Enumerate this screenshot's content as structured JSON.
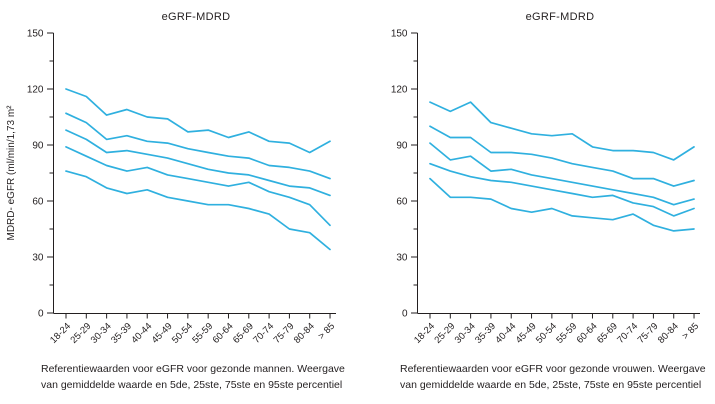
{
  "chart_data": [
    {
      "type": "line",
      "title": "eGRF-MDRD",
      "ylabel": "MDRD- eGFR (ml/min/1,73 m²",
      "xlabel": "",
      "ylim": [
        0,
        150
      ],
      "yticks": [
        0,
        30,
        60,
        90,
        120,
        150
      ],
      "minor_tick_step": 15,
      "grid": false,
      "legend": "none",
      "line_color": "#2fb0df",
      "categories": [
        "18-24",
        "25-29",
        "30-34",
        "35-39",
        "40-44",
        "45-49",
        "50-54",
        "55-59",
        "60-64",
        "65-69",
        "70-74",
        "75-79",
        "80-84",
        "> 85"
      ],
      "series": [
        {
          "name": "95ste percentiel",
          "values": [
            120,
            116,
            106,
            109,
            105,
            104,
            97,
            98,
            94,
            97,
            92,
            91,
            86,
            92
          ]
        },
        {
          "name": "75ste percentiel",
          "values": [
            107,
            102,
            93,
            95,
            92,
            91,
            88,
            86,
            84,
            83,
            79,
            78,
            76,
            72
          ]
        },
        {
          "name": "gemiddelde waarde",
          "values": [
            98,
            93,
            86,
            87,
            85,
            83,
            80,
            77,
            75,
            74,
            71,
            68,
            67,
            63
          ]
        },
        {
          "name": "25ste percentiel",
          "values": [
            89,
            84,
            79,
            76,
            78,
            74,
            72,
            70,
            68,
            70,
            65,
            62,
            58,
            47
          ]
        },
        {
          "name": "5de percentiel",
          "values": [
            76,
            73,
            67,
            64,
            66,
            62,
            60,
            58,
            58,
            56,
            53,
            45,
            43,
            34
          ]
        }
      ],
      "caption_lines": [
        "Referentiewaarden voor eGFR voor gezonde mannen. Weergave",
        "van gemiddelde waarde en 5de, 25ste, 75ste en 95ste percentiel"
      ]
    },
    {
      "type": "line",
      "title": "eGRF-MDRD",
      "ylabel": "",
      "xlabel": "",
      "ylim": [
        0,
        150
      ],
      "yticks": [
        0,
        30,
        60,
        90,
        120,
        150
      ],
      "minor_tick_step": 15,
      "grid": false,
      "legend": "none",
      "line_color": "#2fb0df",
      "categories": [
        "18-24",
        "25-29",
        "30-34",
        "35-39",
        "40-44",
        "45-49",
        "50-54",
        "55-59",
        "60-64",
        "65-69",
        "70-74",
        "75-79",
        "80-84",
        "> 85"
      ],
      "series": [
        {
          "name": "95ste percentiel",
          "values": [
            113,
            108,
            113,
            102,
            99,
            96,
            95,
            96,
            89,
            87,
            87,
            86,
            82,
            89
          ]
        },
        {
          "name": "75ste percentiel",
          "values": [
            100,
            94,
            94,
            86,
            86,
            85,
            83,
            80,
            78,
            76,
            72,
            72,
            68,
            71
          ]
        },
        {
          "name": "gemiddelde waarde",
          "values": [
            91,
            82,
            84,
            76,
            77,
            74,
            72,
            70,
            68,
            66,
            64,
            62,
            58,
            61
          ]
        },
        {
          "name": "25ste percentiel",
          "values": [
            80,
            76,
            73,
            71,
            70,
            68,
            66,
            64,
            62,
            63,
            59,
            57,
            52,
            56
          ]
        },
        {
          "name": "5de percentiel",
          "values": [
            72,
            62,
            62,
            61,
            56,
            54,
            56,
            52,
            51,
            50,
            53,
            47,
            44,
            45
          ]
        }
      ],
      "caption_lines": [
        "Referentiewaarden voor eGFR voor gezonde vrouwen. Weergave",
        "van gemiddelde waarde en 5de, 25ste, 75ste en 95ste percentiel"
      ]
    }
  ]
}
